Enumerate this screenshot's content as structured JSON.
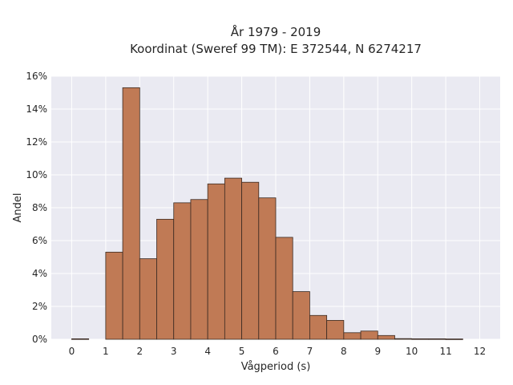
{
  "chart_data": {
    "type": "bar",
    "title_line1": "År 1979 - 2019",
    "title_line2": "Koordinat (Sweref 99 TM): E 372544, N 6274217",
    "xlabel": "Vågperiod (s)",
    "ylabel": "Andel",
    "xlim": [
      -0.6,
      12.6
    ],
    "ylim": [
      0,
      0.16
    ],
    "bin_width": 0.5,
    "x_ticks": [
      "0",
      "1",
      "2",
      "3",
      "4",
      "5",
      "6",
      "7",
      "8",
      "9",
      "10",
      "11",
      "12"
    ],
    "y_ticks": [
      "0%",
      "2%",
      "4%",
      "6%",
      "8%",
      "10%",
      "12%",
      "14%",
      "16%"
    ],
    "y_tick_values": [
      0,
      0.02,
      0.04,
      0.06,
      0.08,
      0.1,
      0.12,
      0.14,
      0.16
    ],
    "bin_starts": [
      0,
      0.5,
      1.0,
      1.5,
      2.0,
      2.5,
      3.0,
      3.5,
      4.0,
      4.5,
      5.0,
      5.5,
      6.0,
      6.5,
      7.0,
      7.5,
      8.0,
      8.5,
      9.0,
      9.5,
      10.0,
      10.5,
      11.0,
      11.5
    ],
    "values": [
      0.0003,
      0,
      0.053,
      0.153,
      0.049,
      0.073,
      0.083,
      0.085,
      0.0945,
      0.098,
      0.0955,
      0.086,
      0.062,
      0.029,
      0.0145,
      0.0115,
      0.004,
      0.005,
      0.0023,
      0.0004,
      0.0003,
      0.0003,
      0.0002,
      0
    ],
    "bar_color": "#c07a55",
    "bar_edge_color": "#3a2a22",
    "background_color": "#eaeaf2",
    "grid": true
  }
}
